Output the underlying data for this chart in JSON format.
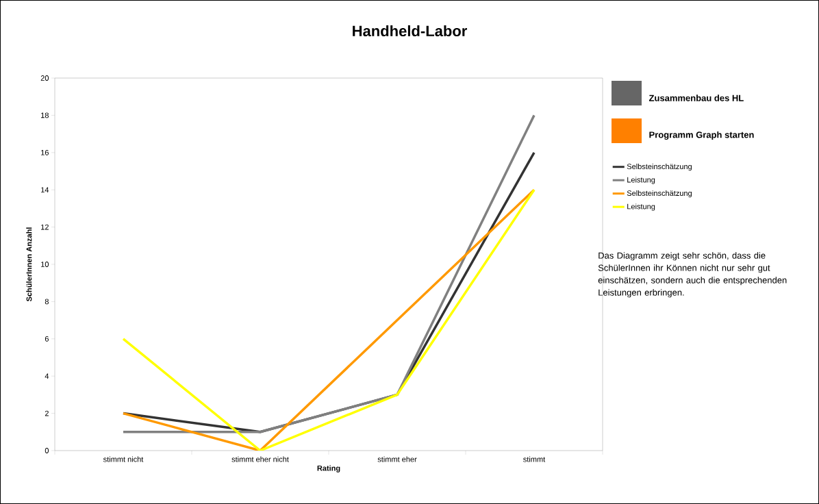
{
  "chart_data": {
    "type": "line",
    "title": "Handheld-Labor",
    "xlabel": "Rating",
    "ylabel": "SchülerInnen Anzahl",
    "categories": [
      "stimmt nicht",
      "stimmt eher nicht",
      "stimmt eher",
      "stimmt"
    ],
    "series": [
      {
        "name": "Selbsteinschätzung",
        "color": "#333333",
        "values": [
          2,
          1,
          3,
          16
        ]
      },
      {
        "name": "Leistung",
        "color": "#808080",
        "values": [
          1,
          1,
          3,
          18
        ]
      },
      {
        "name": "Selbsteinschätzung",
        "color": "#ff9900",
        "values": [
          2,
          0,
          7,
          14
        ]
      },
      {
        "name": "Leistung",
        "color": "#ffff00",
        "values": [
          6,
          0,
          3,
          14
        ]
      }
    ],
    "ylim": [
      0,
      20
    ],
    "yticks": [
      0,
      2,
      4,
      6,
      8,
      10,
      12,
      14,
      16,
      18,
      20
    ],
    "grid": false,
    "legend": "right",
    "marker": "none",
    "line_style": "solid",
    "annotations": [
      "Zusammenbau des HL",
      "Programm Graph starten",
      "Das Diagramm zeigt sehr schön, dass die SchülerInnen ihr Können nicht nur sehr gut einschätzen, sondern auch die entsprechenden Leistungen erbringen."
    ]
  }
}
